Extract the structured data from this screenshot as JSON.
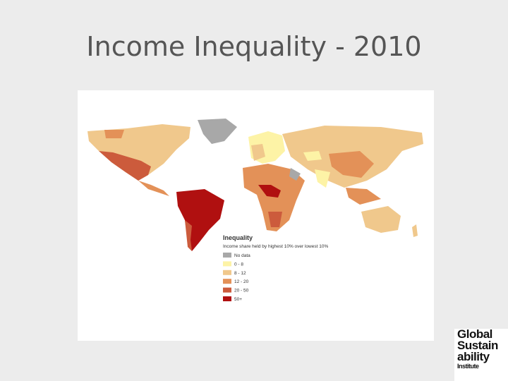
{
  "header": {
    "title": "Income Inequality - 2010"
  },
  "map": {
    "legend": {
      "title": "Inequality",
      "subtitle": "Income share held by highest 10% over lowest 10%",
      "items": [
        {
          "label": "No data",
          "color": "#a8a8a8"
        },
        {
          "label": "0 - 8",
          "color": "#fdf3a6"
        },
        {
          "label": "8 - 12",
          "color": "#f0c88c"
        },
        {
          "label": "12 - 20",
          "color": "#e39158"
        },
        {
          "label": "20 - 50",
          "color": "#cc5b3c"
        },
        {
          "label": "50+",
          "color": "#b01010"
        }
      ]
    }
  },
  "logo": {
    "lines": [
      "Global",
      "Sustain",
      "ability",
      "Institute"
    ]
  }
}
